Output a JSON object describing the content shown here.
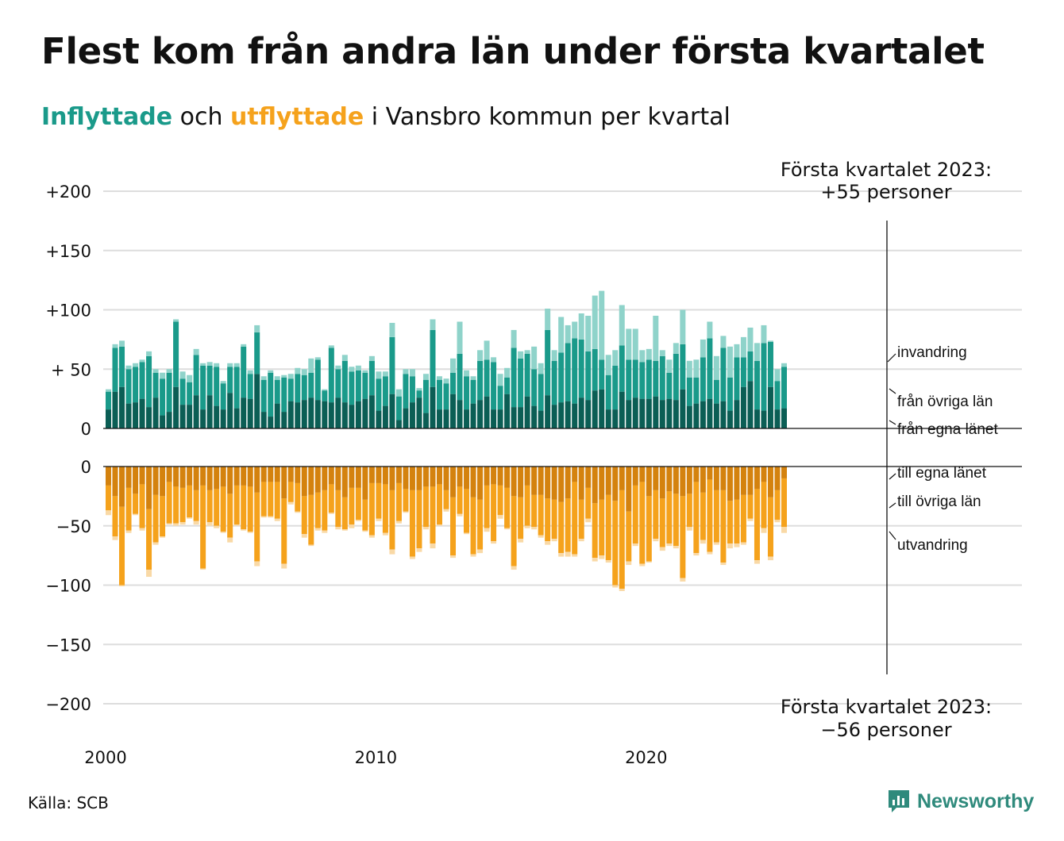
{
  "title": "Flest kom från andra län under första kvartalet",
  "subtitle": {
    "in_word": "Inflyttade",
    "and_word": " och ",
    "out_word": "utflyttade",
    "rest": " i Vansbro kommun per kvartal"
  },
  "annotations": {
    "top_line1": "Första kvartalet 2023:",
    "top_line2": "+55 personer",
    "bottom_line1": "Första kvartalet 2023:",
    "bottom_line2": "−56 personer"
  },
  "segment_labels": {
    "invandring": "invandring",
    "fran_ovriga_lan": "från övriga län",
    "fran_egna_lanet": "från egna länet",
    "till_egna_lanet": "till egna länet",
    "till_ovriga_lan": "till övriga län",
    "utvandring": "utvandring"
  },
  "source": "Källa: SCB",
  "logo_text": "Newsworthy",
  "colors": {
    "in_dark": "#0b5e55",
    "in_mid": "#1a9a8a",
    "in_light": "#8fd3ca",
    "out_dark": "#d4820e",
    "out_mid": "#f5a21c",
    "out_light": "#f9d9a6",
    "grid": "#dddddd",
    "logo": "#2f8a7c"
  },
  "chart_data": {
    "type": "bar",
    "stacked": true,
    "x_start": "2000 Q1",
    "x_end": "2023 Q1",
    "x_ticks": [
      "2000",
      "2010",
      "2020"
    ],
    "top_panel": {
      "yticks": [
        "+200",
        "+150",
        "+100",
        "+ 50",
        "0"
      ],
      "ylim": [
        0,
        200
      ]
    },
    "bottom_panel": {
      "yticks": [
        "0",
        "−50",
        "−100",
        "−150",
        "−200"
      ],
      "ylim": [
        -200,
        0
      ]
    },
    "inflyttade": {
      "fran_egna_lanet": [
        16,
        31,
        35,
        21,
        22,
        25,
        18,
        26,
        11,
        14,
        35,
        20,
        20,
        28,
        16,
        28,
        19,
        16,
        30,
        17,
        26,
        25,
        46,
        14,
        10,
        21,
        14,
        23,
        22,
        24,
        26,
        24,
        23,
        22,
        26,
        22,
        20,
        23,
        25,
        28,
        15,
        19,
        29,
        7,
        17,
        22,
        26,
        13,
        35,
        16,
        16,
        29,
        24,
        16,
        21,
        24,
        27,
        16,
        16,
        29,
        18,
        18,
        27,
        19,
        15,
        28,
        20,
        22,
        23,
        21,
        26,
        24,
        32,
        33,
        16,
        16,
        31,
        24,
        26,
        25,
        25,
        27,
        24,
        25,
        24,
        33,
        19,
        21,
        23,
        25,
        21,
        23,
        15,
        24,
        35,
        40,
        16,
        15,
        35,
        16,
        17
      ],
      "fran_ovriga_lan": [
        15,
        37,
        34,
        29,
        30,
        31,
        43,
        21,
        31,
        33,
        55,
        22,
        19,
        34,
        37,
        25,
        33,
        22,
        22,
        35,
        43,
        21,
        35,
        27,
        37,
        20,
        29,
        19,
        24,
        21,
        21,
        34,
        9,
        46,
        24,
        35,
        28,
        26,
        22,
        29,
        27,
        25,
        48,
        20,
        29,
        22,
        6,
        28,
        48,
        25,
        22,
        18,
        39,
        28,
        20,
        33,
        31,
        40,
        20,
        14,
        50,
        41,
        36,
        31,
        31,
        55,
        37,
        42,
        49,
        55,
        49,
        41,
        35,
        25,
        29,
        37,
        39,
        34,
        32,
        31,
        33,
        30,
        37,
        22,
        39,
        38,
        24,
        22,
        37,
        51,
        20,
        45,
        28,
        36,
        25,
        25,
        41,
        57,
        38,
        24,
        35
      ],
      "invandring": [
        2,
        3,
        5,
        3,
        3,
        2,
        4,
        3,
        5,
        3,
        2,
        6,
        6,
        5,
        2,
        3,
        3,
        2,
        3,
        3,
        2,
        3,
        6,
        3,
        2,
        3,
        2,
        4,
        5,
        5,
        12,
        2,
        1,
        2,
        3,
        5,
        4,
        4,
        2,
        4,
        6,
        4,
        12,
        6,
        4,
        6,
        2,
        5,
        9,
        3,
        4,
        12,
        27,
        5,
        3,
        9,
        16,
        4,
        10,
        8,
        15,
        6,
        3,
        19,
        9,
        18,
        9,
        30,
        15,
        14,
        22,
        30,
        45,
        58,
        17,
        13,
        34,
        26,
        26,
        10,
        9,
        38,
        5,
        11,
        9,
        29,
        14,
        15,
        15,
        14,
        20,
        10,
        26,
        11,
        17,
        20,
        15,
        15,
        1,
        10,
        3
      ]
    },
    "utflyttade": {
      "till_egna_lanet": [
        16,
        25,
        34,
        18,
        23,
        15,
        36,
        24,
        25,
        13,
        17,
        18,
        16,
        20,
        16,
        20,
        19,
        17,
        23,
        16,
        16,
        17,
        22,
        13,
        13,
        13,
        27,
        13,
        14,
        25,
        24,
        22,
        20,
        15,
        20,
        26,
        18,
        18,
        28,
        14,
        14,
        15,
        20,
        14,
        19,
        20,
        20,
        17,
        17,
        15,
        20,
        26,
        17,
        19,
        26,
        28,
        16,
        15,
        16,
        18,
        25,
        26,
        16,
        24,
        24,
        27,
        28,
        30,
        27,
        13,
        28,
        18,
        31,
        28,
        24,
        29,
        20,
        38,
        16,
        13,
        25,
        20,
        27,
        21,
        23,
        25,
        23,
        13,
        22,
        11,
        20,
        20,
        29,
        28,
        24,
        24,
        19,
        13,
        26,
        20,
        10
      ],
      "till_ovriga_lan": [
        21,
        34,
        66,
        36,
        17,
        37,
        51,
        40,
        34,
        35,
        31,
        29,
        27,
        26,
        70,
        27,
        31,
        38,
        37,
        33,
        37,
        38,
        58,
        29,
        29,
        31,
        55,
        17,
        24,
        32,
        42,
        30,
        34,
        24,
        31,
        27,
        31,
        27,
        26,
        44,
        30,
        41,
        50,
        32,
        19,
        56,
        49,
        34,
        48,
        34,
        16,
        49,
        23,
        37,
        48,
        42,
        36,
        48,
        25,
        34,
        59,
        35,
        34,
        27,
        34,
        36,
        33,
        43,
        45,
        61,
        33,
        26,
        46,
        47,
        55,
        71,
        83,
        42,
        49,
        69,
        55,
        41,
        41,
        44,
        44,
        69,
        28,
        60,
        40,
        61,
        44,
        61,
        36,
        37,
        40,
        20,
        60,
        39,
        50,
        25,
        41
      ],
      "utvandring": [
        4,
        3,
        1,
        2,
        1,
        2,
        6,
        2,
        1,
        1,
        2,
        2,
        1,
        3,
        1,
        3,
        2,
        1,
        4,
        1,
        1,
        1,
        4,
        1,
        1,
        2,
        4,
        2,
        1,
        3,
        1,
        2,
        2,
        1,
        2,
        1,
        3,
        1,
        1,
        2,
        2,
        2,
        4,
        2,
        1,
        2,
        3,
        2,
        4,
        1,
        2,
        2,
        2,
        1,
        2,
        3,
        3,
        2,
        3,
        1,
        3,
        3,
        2,
        2,
        2,
        3,
        2,
        3,
        4,
        2,
        2,
        3,
        3,
        3,
        2,
        2,
        2,
        3,
        2,
        2,
        1,
        2,
        3,
        2,
        2,
        3,
        3,
        2,
        3,
        2,
        2,
        2,
        4,
        3,
        2,
        2,
        3,
        4,
        3,
        2,
        5
      ]
    },
    "last_quarter_label": "Första kvartalet 2023",
    "last_quarter_in_total": 55,
    "last_quarter_out_total": -56
  }
}
